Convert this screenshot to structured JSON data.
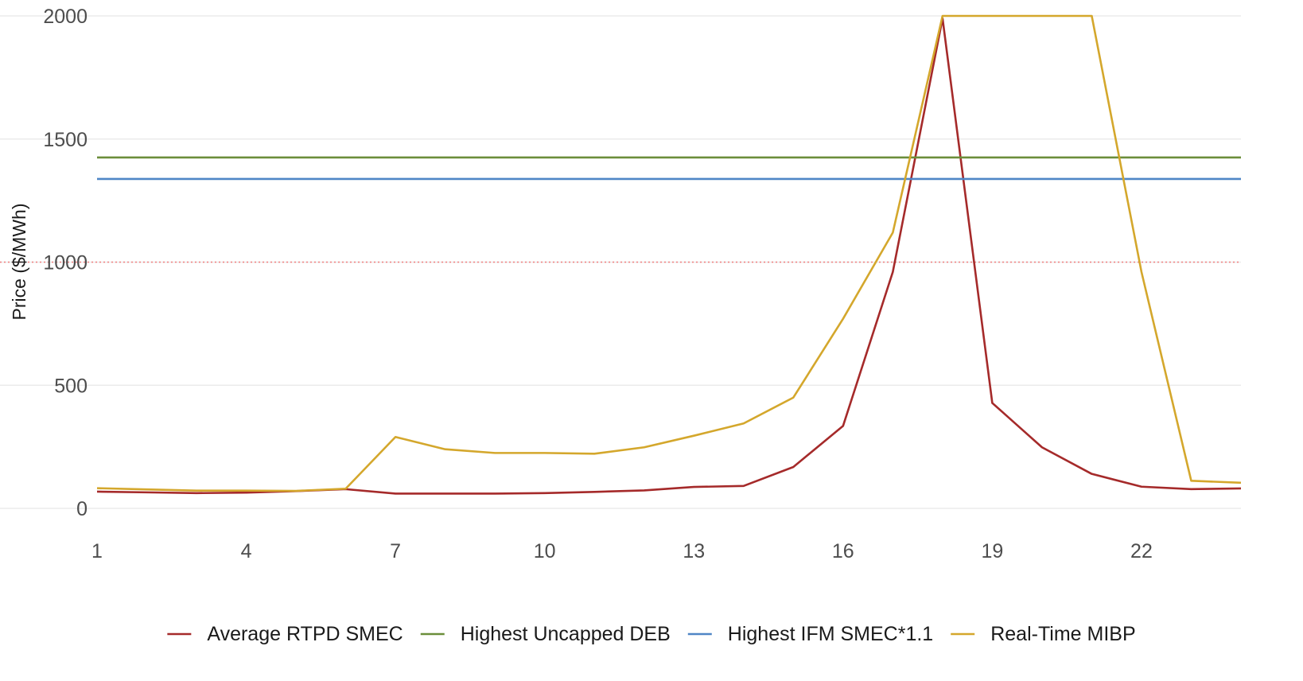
{
  "chart_data": {
    "type": "line",
    "title": "",
    "xlabel": "",
    "ylabel": "Price ($/MWh)",
    "x": [
      1,
      2,
      3,
      4,
      5,
      6,
      7,
      8,
      9,
      10,
      11,
      12,
      13,
      14,
      15,
      16,
      17,
      18,
      19,
      20,
      21,
      22,
      23,
      24
    ],
    "xticks": [
      "1",
      "4",
      "7",
      "10",
      "13",
      "16",
      "19",
      "22"
    ],
    "yticks": [
      "0",
      "500",
      "1000",
      "1500",
      "2000"
    ],
    "xlim": [
      1,
      24
    ],
    "ylim": [
      0,
      2000
    ],
    "grid": true,
    "reference_line": {
      "y": 1000,
      "style": "dotted",
      "color": "#f08080"
    },
    "legend_position": "bottom",
    "series": [
      {
        "name": "Average RTPD SMEC",
        "color": "#a52a2a",
        "values": [
          68,
          65,
          62,
          64,
          70,
          78,
          60,
          60,
          60,
          62,
          67,
          73,
          87,
          91,
          168,
          335,
          960,
          1990,
          428,
          248,
          140,
          88,
          78,
          81
        ]
      },
      {
        "name": "Highest Uncapped DEB",
        "color": "#6b8e3a",
        "values": [
          1425,
          1425,
          1425,
          1425,
          1425,
          1425,
          1425,
          1425,
          1425,
          1425,
          1425,
          1425,
          1425,
          1425,
          1425,
          1425,
          1425,
          1425,
          1425,
          1425,
          1425,
          1425,
          1425,
          1425
        ]
      },
      {
        "name": "Highest IFM SMEC*1.1",
        "color": "#4f86c6",
        "values": [
          1338,
          1338,
          1338,
          1338,
          1338,
          1338,
          1338,
          1338,
          1338,
          1338,
          1338,
          1338,
          1338,
          1338,
          1338,
          1338,
          1338,
          1338,
          1338,
          1338,
          1338,
          1338,
          1338,
          1338
        ]
      },
      {
        "name": "Real-Time MIBP",
        "color": "#d4a72c",
        "values": [
          82,
          77,
          72,
          72,
          71,
          80,
          290,
          240,
          225,
          225,
          222,
          248,
          295,
          345,
          450,
          770,
          1120,
          2000,
          2000,
          2000,
          2000,
          960,
          112,
          104
        ]
      }
    ]
  }
}
